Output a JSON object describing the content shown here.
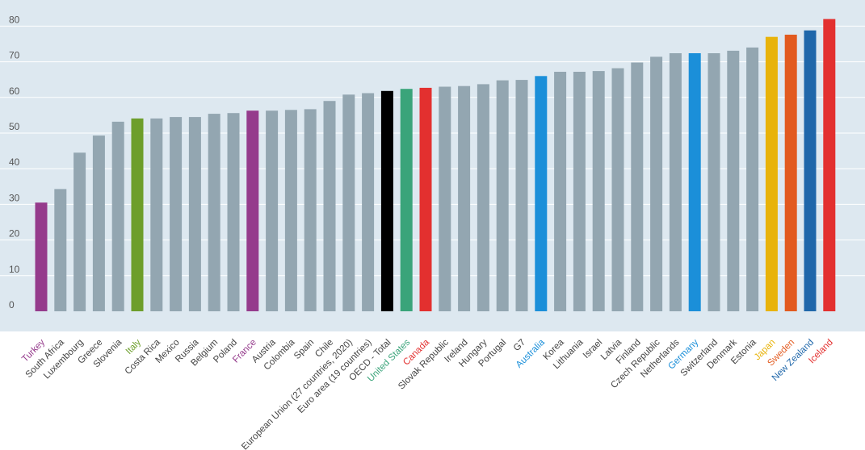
{
  "chart_data": {
    "type": "bar",
    "title": "",
    "xlabel": "",
    "ylabel": "",
    "ylim": [
      0,
      80
    ],
    "yticks": [
      0,
      10,
      20,
      30,
      40,
      50,
      60,
      70,
      80
    ],
    "grid": true,
    "legend": "none",
    "default_color": "#93a6b1",
    "categories": [
      {
        "name": "Turkey",
        "value": 30.5,
        "color": "#953b8c"
      },
      {
        "name": "South Africa",
        "value": 34.3
      },
      {
        "name": "Luxembourg",
        "value": 44.5
      },
      {
        "name": "Greece",
        "value": 49.3
      },
      {
        "name": "Slovenia",
        "value": 53.2
      },
      {
        "name": "Italy",
        "value": 54.1,
        "color": "#6d9e2b"
      },
      {
        "name": "Costa Rica",
        "value": 54.1
      },
      {
        "name": "Mexico",
        "value": 54.5
      },
      {
        "name": "Russia",
        "value": 54.5
      },
      {
        "name": "Belgium",
        "value": 55.4
      },
      {
        "name": "Poland",
        "value": 55.6
      },
      {
        "name": "France",
        "value": 56.3,
        "color": "#953b8c"
      },
      {
        "name": "Austria",
        "value": 56.3
      },
      {
        "name": "Colombia",
        "value": 56.5
      },
      {
        "name": "Spain",
        "value": 56.7
      },
      {
        "name": "Chile",
        "value": 59.0
      },
      {
        "name": "European Union (27 countries, 2020)",
        "value": 60.8
      },
      {
        "name": "Euro area (19 countries)",
        "value": 61.2
      },
      {
        "name": "OECD - Total",
        "value": 61.8,
        "color": "#000000"
      },
      {
        "name": "United States",
        "value": 62.4,
        "color": "#3aa47a"
      },
      {
        "name": "Canada",
        "value": 62.7,
        "color": "#e3302f"
      },
      {
        "name": "Slovak Republic",
        "value": 63.0
      },
      {
        "name": "Ireland",
        "value": 63.2
      },
      {
        "name": "Hungary",
        "value": 63.7
      },
      {
        "name": "Portugal",
        "value": 64.8
      },
      {
        "name": "G7",
        "value": 64.9
      },
      {
        "name": "Australia",
        "value": 66.0,
        "color": "#1b8fd9"
      },
      {
        "name": "Korea",
        "value": 67.2
      },
      {
        "name": "Lithuania",
        "value": 67.2
      },
      {
        "name": "Israel",
        "value": 67.4
      },
      {
        "name": "Latvia",
        "value": 68.2
      },
      {
        "name": "Finland",
        "value": 69.8
      },
      {
        "name": "Czech Republic",
        "value": 71.4
      },
      {
        "name": "Netherlands",
        "value": 72.4
      },
      {
        "name": "Germany",
        "value": 72.4,
        "color": "#1b8fd9"
      },
      {
        "name": "Switzerland",
        "value": 72.4
      },
      {
        "name": "Denmark",
        "value": 73.1
      },
      {
        "name": "Estonia",
        "value": 74.0
      },
      {
        "name": "Japan",
        "value": 77.0,
        "color": "#e8b30b"
      },
      {
        "name": "Sweden",
        "value": 77.6,
        "color": "#e25a1f"
      },
      {
        "name": "New Zealand",
        "value": 78.8,
        "color": "#1f67aa"
      },
      {
        "name": "Iceland",
        "value": 82.0,
        "color": "#e3302f"
      }
    ]
  }
}
